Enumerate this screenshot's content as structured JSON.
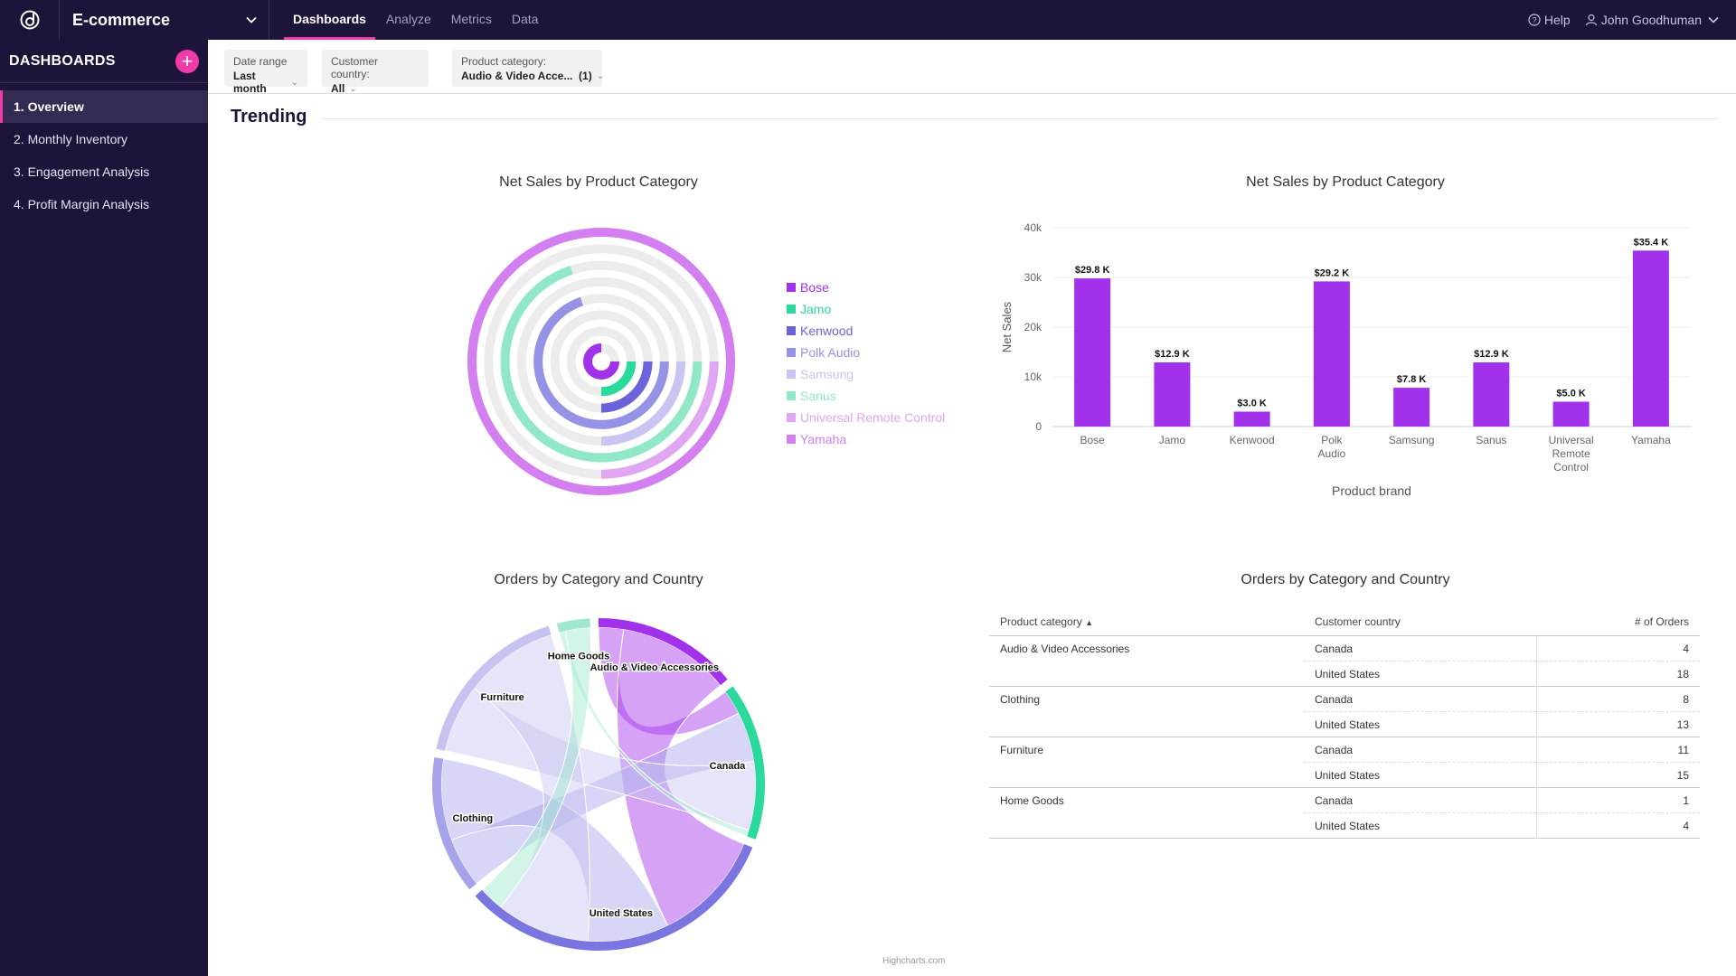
{
  "app": {
    "workspace": "E-commerce",
    "nav": [
      "Dashboards",
      "Analyze",
      "Metrics",
      "Data"
    ],
    "help": "Help",
    "user": "John Goodhuman"
  },
  "sidebar": {
    "title": "DASHBOARDS",
    "items": [
      "1. Overview",
      "2. Monthly Inventory",
      "3. Engagement Analysis",
      "4. Profit Margin Analysis"
    ]
  },
  "filters": [
    {
      "label": "Date range",
      "value": "Last month"
    },
    {
      "label": "Customer country:",
      "value": "All"
    },
    {
      "label": "Product category:",
      "value": "Audio & Video Acce...  (1)"
    }
  ],
  "section_title": "Trending",
  "credit": "Highcharts.com",
  "chart_data": [
    {
      "type": "radial-bar",
      "title": "Net Sales by Product Category",
      "series": [
        {
          "name": "Bose",
          "color": "#a131ea",
          "fraction": 0.75
        },
        {
          "name": "Jamo",
          "color": "#2ad99c",
          "fraction": 0.25
        },
        {
          "name": "Kenwood",
          "color": "#6c63db",
          "fraction": 0.25
        },
        {
          "name": "Polk Audio",
          "color": "#9693e6",
          "fraction": 0.7
        },
        {
          "name": "Samsung",
          "color": "#c8c5f2",
          "fraction": 0.25
        },
        {
          "name": "Sanus",
          "color": "#91e8c6",
          "fraction": 0.7
        },
        {
          "name": "Universal Remote Control",
          "color": "#e0a6f2",
          "fraction": 0.25
        },
        {
          "name": "Yamaha",
          "color": "#d37ff0",
          "fraction": 1.0
        }
      ]
    },
    {
      "type": "bar",
      "title": "Net Sales by Product Category",
      "categories": [
        "Bose",
        "Jamo",
        "Kenwood",
        "Polk Audio",
        "Samsung",
        "Sanus",
        "Universal Remote Control",
        "Yamaha"
      ],
      "values": [
        29.8,
        12.9,
        3.0,
        29.2,
        7.8,
        12.9,
        5.0,
        35.4
      ],
      "data_labels": [
        "$29.8 K",
        "$12.9 K",
        "$3.0 K",
        "$29.2 K",
        "$7.8 K",
        "$12.9 K",
        "$5.0 K",
        "$35.4 K"
      ],
      "yticks": [
        "0",
        "10k",
        "20k",
        "30k",
        "40k"
      ],
      "ylim": [
        0,
        40
      ],
      "xlabel": "Product brand",
      "ylabel": "Net Sales",
      "color": "#a131ea"
    },
    {
      "type": "dependency-wheel",
      "title": "Orders by Category and Country",
      "nodes": [
        "Audio & Video Accessories",
        "Canada",
        "United States",
        "Clothing",
        "Furniture",
        "Home Goods"
      ],
      "links": [
        {
          "from": "Audio & Video Accessories",
          "to": "Canada",
          "value": 4
        },
        {
          "from": "Audio & Video Accessories",
          "to": "United States",
          "value": 18
        },
        {
          "from": "Clothing",
          "to": "Canada",
          "value": 8
        },
        {
          "from": "Clothing",
          "to": "United States",
          "value": 13
        },
        {
          "from": "Furniture",
          "to": "Canada",
          "value": 11
        },
        {
          "from": "Furniture",
          "to": "United States",
          "value": 15
        },
        {
          "from": "Home Goods",
          "to": "Canada",
          "value": 1
        },
        {
          "from": "Home Goods",
          "to": "United States",
          "value": 4
        }
      ]
    },
    {
      "type": "table",
      "title": "Orders by Category and Country",
      "columns": [
        "Product category",
        "Customer country",
        "# of Orders"
      ],
      "rows": [
        [
          "Audio & Video Accessories",
          "Canada",
          "4"
        ],
        [
          "",
          "United States",
          "18"
        ],
        [
          "Clothing",
          "Canada",
          "8"
        ],
        [
          "",
          "United States",
          "13"
        ],
        [
          "Furniture",
          "Canada",
          "11"
        ],
        [
          "",
          "United States",
          "15"
        ],
        [
          "Home Goods",
          "Canada",
          "1"
        ],
        [
          "",
          "United States",
          "4"
        ]
      ]
    }
  ]
}
